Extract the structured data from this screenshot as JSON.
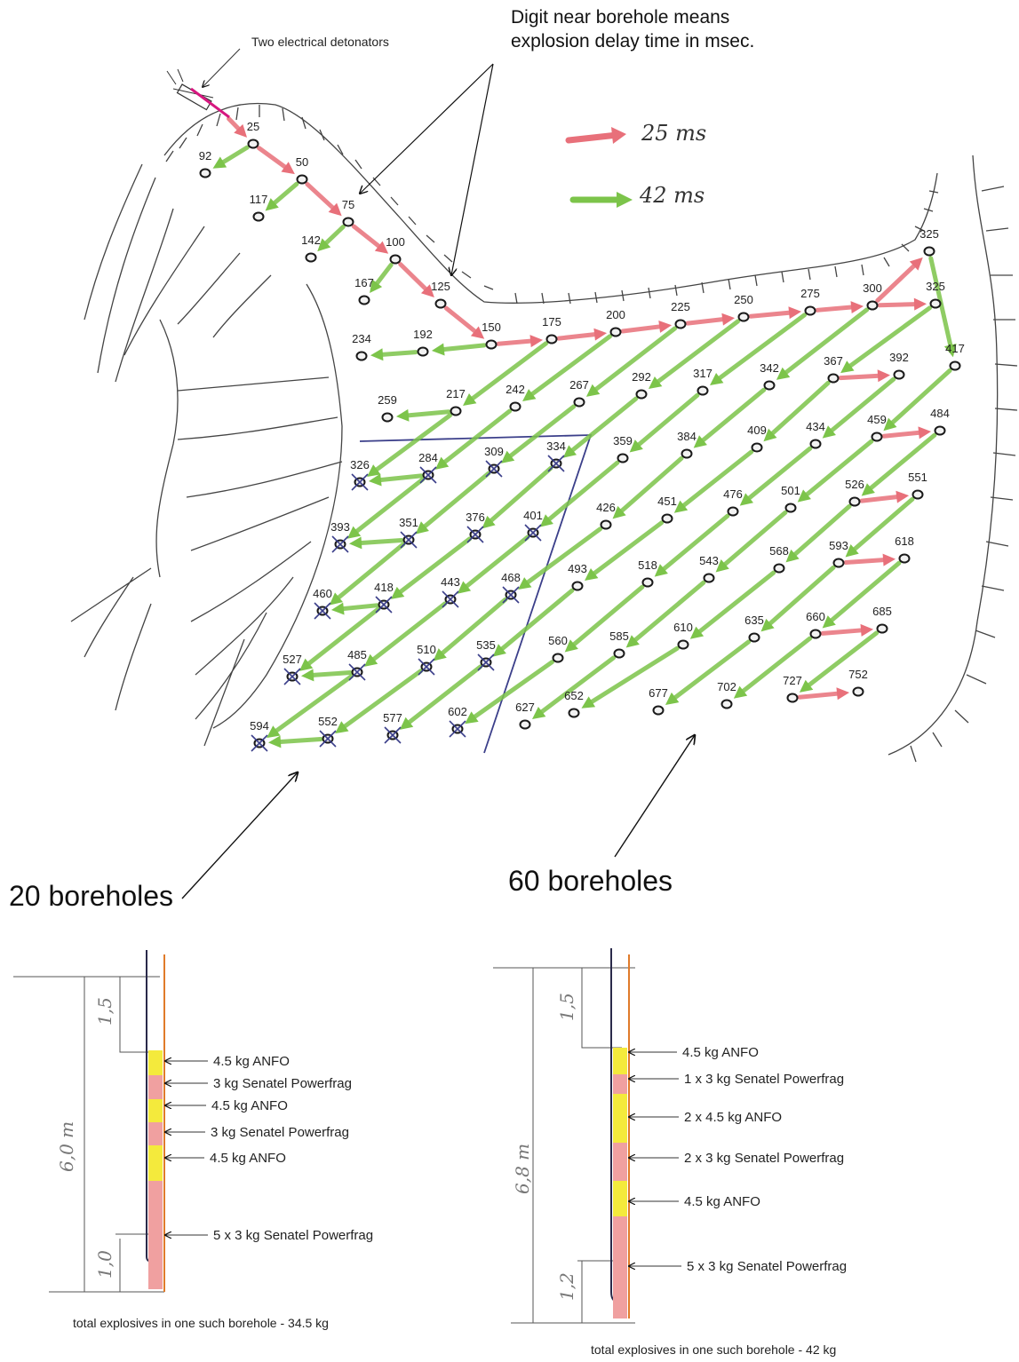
{
  "annotations": {
    "detonators": "Two electrical detonators",
    "delay_note_line1": "Digit near borehole means",
    "delay_note_line2": "explosion delay time in msec."
  },
  "legend": {
    "red": {
      "label": "25 ms",
      "color": "#e8707a"
    },
    "green": {
      "label": "42 ms",
      "color": "#7cc44a"
    }
  },
  "zones": {
    "left": {
      "label": "20 boreholes"
    },
    "right": {
      "label": "60 boreholes"
    }
  },
  "boreholes": [
    {
      "d": "25",
      "crossed": false,
      "in": "red"
    },
    {
      "d": "50",
      "crossed": false,
      "in": "red"
    },
    {
      "d": "75",
      "crossed": false,
      "in": "red"
    },
    {
      "d": "100",
      "crossed": false,
      "in": "red"
    },
    {
      "d": "125",
      "crossed": false,
      "in": "red"
    },
    {
      "d": "150",
      "crossed": false,
      "in": "red"
    },
    {
      "d": "175",
      "crossed": false,
      "in": "red"
    },
    {
      "d": "200",
      "crossed": false,
      "in": "red"
    },
    {
      "d": "225",
      "crossed": false,
      "in": "red"
    },
    {
      "d": "250",
      "crossed": false,
      "in": "red"
    },
    {
      "d": "275",
      "crossed": false,
      "in": "red"
    },
    {
      "d": "300",
      "crossed": false,
      "in": "red"
    },
    {
      "d": "325",
      "crossed": false,
      "in": "red"
    },
    {
      "d": "325",
      "crossed": false,
      "in": "red"
    },
    {
      "d": "92",
      "crossed": false,
      "in": "green"
    },
    {
      "d": "117",
      "crossed": false,
      "in": "green"
    },
    {
      "d": "142",
      "crossed": false,
      "in": "green"
    },
    {
      "d": "167",
      "crossed": false,
      "in": "green"
    },
    {
      "d": "192",
      "crossed": false,
      "in": "green"
    },
    {
      "d": "234",
      "crossed": false,
      "in": "green"
    },
    {
      "d": "217",
      "crossed": false,
      "in": "green"
    },
    {
      "d": "259",
      "crossed": false,
      "in": "green"
    },
    {
      "d": "242",
      "crossed": false,
      "in": "green"
    },
    {
      "d": "267",
      "crossed": false,
      "in": "green"
    },
    {
      "d": "292",
      "crossed": false,
      "in": "green"
    },
    {
      "d": "317",
      "crossed": false,
      "in": "green"
    },
    {
      "d": "342",
      "crossed": false,
      "in": "green"
    },
    {
      "d": "367",
      "crossed": false,
      "in": "green"
    },
    {
      "d": "392",
      "crossed": false,
      "in": "red"
    },
    {
      "d": "417",
      "crossed": false,
      "in": "green"
    },
    {
      "d": "326",
      "crossed": true,
      "in": "green"
    },
    {
      "d": "284",
      "crossed": true,
      "in": "green"
    },
    {
      "d": "309",
      "crossed": true,
      "in": "green"
    },
    {
      "d": "334",
      "crossed": true,
      "in": "green"
    },
    {
      "d": "359",
      "crossed": false,
      "in": "green"
    },
    {
      "d": "384",
      "crossed": false,
      "in": "green"
    },
    {
      "d": "409",
      "crossed": false,
      "in": "green"
    },
    {
      "d": "434",
      "crossed": false,
      "in": "green"
    },
    {
      "d": "459",
      "crossed": false,
      "in": "green"
    },
    {
      "d": "484",
      "crossed": false,
      "in": "red"
    },
    {
      "d": "393",
      "crossed": true,
      "in": "green"
    },
    {
      "d": "351",
      "crossed": true,
      "in": "green"
    },
    {
      "d": "376",
      "crossed": true,
      "in": "green"
    },
    {
      "d": "401",
      "crossed": true,
      "in": "green"
    },
    {
      "d": "426",
      "crossed": false,
      "in": "green"
    },
    {
      "d": "451",
      "crossed": false,
      "in": "green"
    },
    {
      "d": "476",
      "crossed": false,
      "in": "green"
    },
    {
      "d": "501",
      "crossed": false,
      "in": "green"
    },
    {
      "d": "526",
      "crossed": false,
      "in": "green"
    },
    {
      "d": "551",
      "crossed": false,
      "in": "red"
    },
    {
      "d": "460",
      "crossed": true,
      "in": "green"
    },
    {
      "d": "418",
      "crossed": true,
      "in": "green"
    },
    {
      "d": "443",
      "crossed": true,
      "in": "green"
    },
    {
      "d": "468",
      "crossed": true,
      "in": "green"
    },
    {
      "d": "493",
      "crossed": false,
      "in": "green"
    },
    {
      "d": "518",
      "crossed": false,
      "in": "green"
    },
    {
      "d": "543",
      "crossed": false,
      "in": "green"
    },
    {
      "d": "568",
      "crossed": false,
      "in": "green"
    },
    {
      "d": "593",
      "crossed": false,
      "in": "green"
    },
    {
      "d": "618",
      "crossed": false,
      "in": "red"
    },
    {
      "d": "527",
      "crossed": true,
      "in": "green"
    },
    {
      "d": "485",
      "crossed": true,
      "in": "green"
    },
    {
      "d": "510",
      "crossed": true,
      "in": "green"
    },
    {
      "d": "535",
      "crossed": true,
      "in": "green"
    },
    {
      "d": "560",
      "crossed": false,
      "in": "green"
    },
    {
      "d": "585",
      "crossed": false,
      "in": "green"
    },
    {
      "d": "610",
      "crossed": false,
      "in": "green"
    },
    {
      "d": "635",
      "crossed": false,
      "in": "green"
    },
    {
      "d": "660",
      "crossed": false,
      "in": "green"
    },
    {
      "d": "685",
      "crossed": false,
      "in": "red"
    },
    {
      "d": "594",
      "crossed": true,
      "in": "green"
    },
    {
      "d": "552",
      "crossed": true,
      "in": "green"
    },
    {
      "d": "577",
      "crossed": true,
      "in": "green"
    },
    {
      "d": "602",
      "crossed": true,
      "in": "green"
    },
    {
      "d": "627",
      "crossed": false,
      "in": "green"
    },
    {
      "d": "652",
      "crossed": false,
      "in": "green"
    },
    {
      "d": "677",
      "crossed": false,
      "in": "green"
    },
    {
      "d": "702",
      "crossed": false,
      "in": "green"
    },
    {
      "d": "727",
      "crossed": false,
      "in": "green"
    },
    {
      "d": "752",
      "crossed": false,
      "in": "red"
    }
  ],
  "section_left": {
    "depth_label": "6,0 m",
    "stem_label": "1,5",
    "bottom_label": "1,0",
    "charges": [
      "4.5 kg ANFO",
      "3 kg Senatel Powerfrag",
      "4.5 kg ANFO",
      "3 kg Senatel Powerfrag",
      "4.5 kg ANFO",
      "5 x 3 kg Senatel Powerfrag"
    ],
    "total": "total explosives in one such borehole - 34.5 kg"
  },
  "section_right": {
    "depth_label": "6,8 m",
    "stem_label": "1,5",
    "bottom_label": "1,2",
    "charges": [
      "4.5 kg ANFO",
      "1 x 3 kg Senatel Powerfrag",
      "2 x 4.5 kg ANFO",
      "2 x 3 kg Senatel Powerfrag",
      "4.5 kg ANFO",
      "5 x 3 kg Senatel Powerfrag"
    ],
    "total": "total explosives in one such borehole - 42 kg"
  }
}
